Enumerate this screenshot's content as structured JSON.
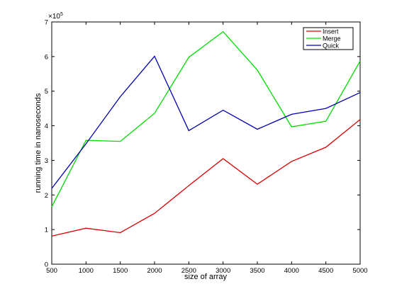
{
  "chart_data": {
    "type": "line",
    "title": "",
    "xlabel": "size of array",
    "ylabel": "running time in nanoseconds",
    "xlim": [
      500,
      5000
    ],
    "ylim": [
      0,
      7
    ],
    "y_multiplier_base": "×10",
    "y_multiplier_exp": "5",
    "x_ticks": [
      500,
      1000,
      1500,
      2000,
      2500,
      3000,
      3500,
      4000,
      4500,
      5000
    ],
    "y_ticks": [
      0,
      1,
      2,
      3,
      4,
      5,
      6,
      7
    ],
    "grid": false,
    "legend_position": "top-right",
    "x": [
      500,
      1000,
      1500,
      2000,
      2500,
      3000,
      3500,
      4000,
      4500,
      5000
    ],
    "series": [
      {
        "name": "Insert",
        "color": "#dd0000",
        "values": [
          0.81,
          1.04,
          0.91,
          1.47,
          2.27,
          3.05,
          2.31,
          2.97,
          3.38,
          4.18
        ]
      },
      {
        "name": "Merge",
        "color": "#00dd00",
        "values": [
          1.66,
          3.58,
          3.55,
          4.36,
          5.98,
          6.72,
          5.61,
          3.97,
          4.13,
          5.87
        ]
      },
      {
        "name": "Quick",
        "color": "#0000b0",
        "values": [
          2.19,
          3.48,
          4.84,
          6.01,
          3.86,
          4.45,
          3.9,
          4.33,
          4.5,
          4.96
        ]
      }
    ]
  }
}
